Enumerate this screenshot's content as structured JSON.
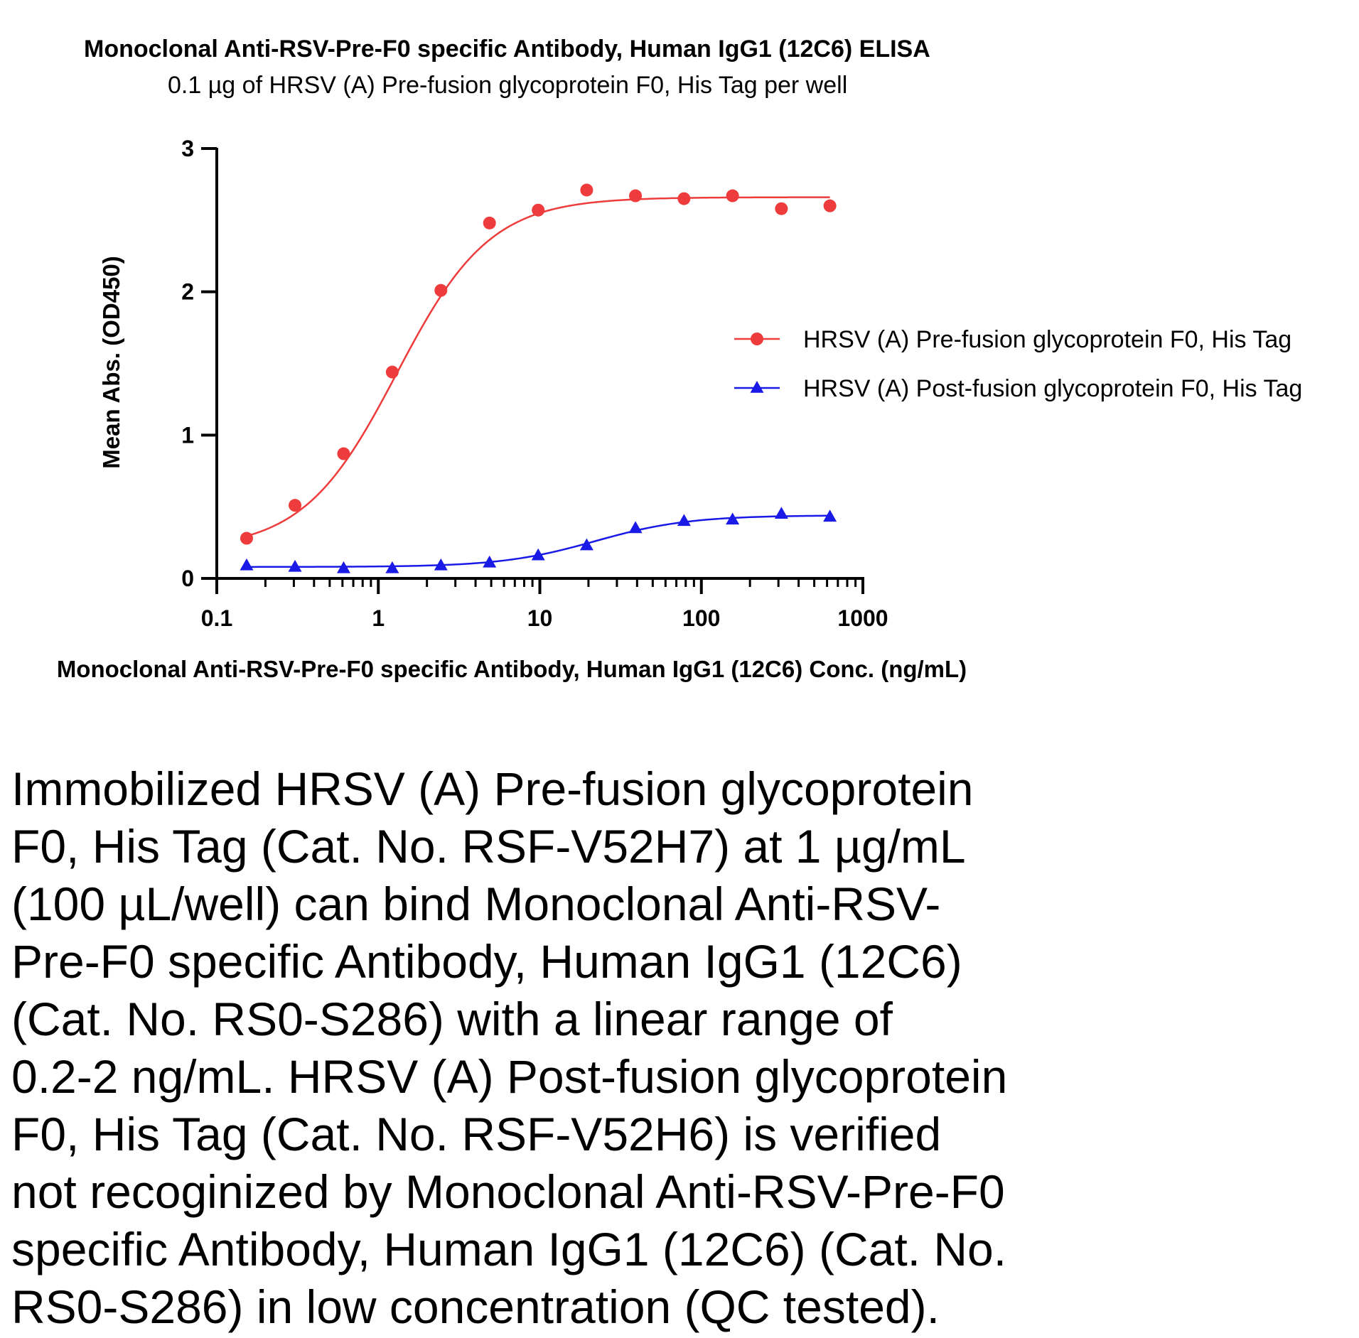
{
  "chart_data": {
    "type": "scatter",
    "title": "Monoclonal Anti-RSV-Pre-F0 specific Antibody, Human IgG1 (12C6) ELISA",
    "subtitle": "0.1 µg of HRSV (A) Pre-fusion glycoprotein F0, His Tag per well",
    "xlabel": "Monoclonal Anti-RSV-Pre-F0 specific Antibody, Human IgG1 (12C6) Conc. (ng/mL)",
    "ylabel": "Mean Abs. (OD450)",
    "xscale": "log",
    "xlim": [
      0.1,
      1000
    ],
    "ylim": [
      0,
      3
    ],
    "xticks": [
      0.1,
      1,
      10,
      100,
      1000
    ],
    "xtick_labels": [
      "0.1",
      "1",
      "10",
      "100",
      "1000"
    ],
    "yticks": [
      0,
      1,
      2,
      3
    ],
    "ytick_labels": [
      "0",
      "1",
      "2",
      "3"
    ],
    "legend_position": "right",
    "x": [
      0.153,
      0.305,
      0.61,
      1.22,
      2.44,
      4.88,
      9.77,
      19.5,
      39.1,
      78.1,
      156,
      313,
      625
    ],
    "series": [
      {
        "name": "HRSV (A) Pre-fusion glycoprotein F0, His Tag",
        "marker": "circle",
        "color": "#ee3b3b",
        "values": [
          0.28,
          0.51,
          0.87,
          1.44,
          2.01,
          2.48,
          2.57,
          2.71,
          2.67,
          2.65,
          2.67,
          2.58,
          2.6
        ],
        "fit": {
          "bottom": 0.2,
          "top": 2.66,
          "ec50": 1.3,
          "hill": 1.5
        }
      },
      {
        "name": "HRSV (A) Post-fusion glycoprotein F0, His Tag",
        "marker": "triangle",
        "color": "#1a1ae6",
        "values": [
          0.09,
          0.08,
          0.07,
          0.07,
          0.09,
          0.11,
          0.16,
          0.23,
          0.35,
          0.4,
          0.41,
          0.45,
          0.43
        ],
        "fit": {
          "bottom": 0.08,
          "top": 0.44,
          "ec50": 22,
          "hill": 1.5
        }
      }
    ]
  },
  "caption": "Immobilized HRSV (A) Pre-fusion glycoprotein\nF0, His Tag (Cat. No. RSF-V52H7) at 1 µg/mL\n(100 µL/well) can bind Monoclonal Anti-RSV-\nPre-F0 specific Antibody, Human IgG1 (12C6)\n(Cat. No. RS0-S286) with a linear range of\n0.2-2 ng/mL. HRSV (A) Post-fusion glycoprotein\nF0, His Tag (Cat. No. RSF-V52H6) is verified\nnot recoginized by Monoclonal Anti-RSV-Pre-F0\nspecific Antibody, Human IgG1 (12C6) (Cat. No.\nRS0-S286) in low concentration (QC tested)."
}
